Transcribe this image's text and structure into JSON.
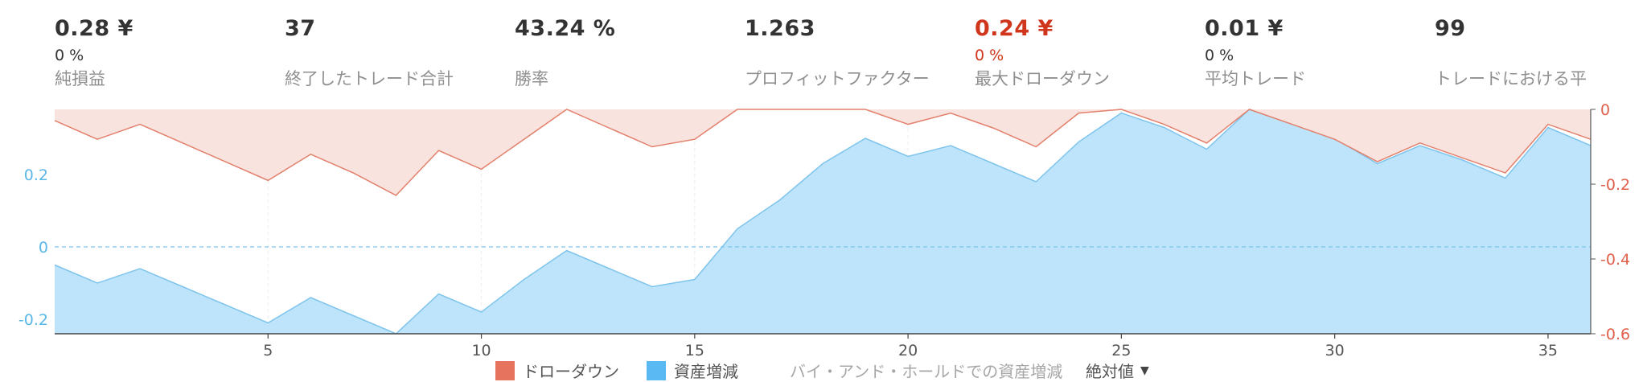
{
  "stats": [
    {
      "value": "0.28 ¥",
      "pct": "0 %",
      "label": "純損益",
      "color": "#333333"
    },
    {
      "value": "37",
      "pct": "",
      "label": "終了したトレード合計",
      "color": "#333333"
    },
    {
      "value": "43.24 %",
      "pct": "",
      "label": "勝率",
      "color": "#333333"
    },
    {
      "value": "1.263",
      "pct": "",
      "label": "プロフィットファクター",
      "color": "#333333"
    },
    {
      "value": "0.24 ¥",
      "pct": "0 %",
      "label": "最大ドローダウン",
      "color": "#d0361c"
    },
    {
      "value": "0.01 ¥",
      "pct": "0 %",
      "label": "平均トレード",
      "color": "#333333"
    },
    {
      "value": "99",
      "pct": "",
      "label": "トレードにおける平",
      "color": "#333333"
    }
  ],
  "legend": {
    "drawdown": "ドローダウン",
    "equity": "資産増減",
    "buy_hold": "バイ・アンド・ホールドでの資産増減",
    "mode": "絶対値"
  },
  "colors": {
    "drawdown_fill": "#f9e1dc",
    "drawdown_line": "#e2806c",
    "drawdown_swatch": "#e5735e",
    "equity_fill": "#bde4fa",
    "equity_line": "#7fc4ec",
    "equity_swatch": "#5ab8f2",
    "left_axis": "#5ab8e8",
    "right_axis": "#e0604a"
  },
  "chart_data": {
    "type": "area",
    "xticks": [
      5,
      10,
      15,
      20,
      25,
      30,
      35
    ],
    "xlim": [
      0,
      36
    ],
    "left_axis": {
      "ticks": [
        0.2,
        0,
        -0.2
      ],
      "ylim": [
        -0.24,
        0.38
      ]
    },
    "right_axis": {
      "ticks": [
        0,
        -0.2,
        -0.4,
        -0.6
      ],
      "ylim": [
        -0.6,
        0.0
      ]
    },
    "series": [
      {
        "name": "資産増減",
        "axis": "left",
        "x": [
          0,
          1,
          2,
          3,
          4,
          5,
          6,
          7,
          8,
          9,
          10,
          11,
          12,
          13,
          14,
          15,
          16,
          17,
          18,
          19,
          20,
          21,
          22,
          23,
          24,
          25,
          26,
          27,
          28,
          29,
          30,
          31,
          32,
          33,
          34,
          35,
          36
        ],
        "values": [
          -0.05,
          -0.1,
          -0.06,
          -0.11,
          -0.16,
          -0.21,
          -0.14,
          -0.19,
          -0.24,
          -0.13,
          -0.18,
          -0.09,
          -0.01,
          -0.06,
          -0.11,
          -0.09,
          0.05,
          0.13,
          0.23,
          0.3,
          0.25,
          0.28,
          0.23,
          0.18,
          0.29,
          0.37,
          0.33,
          0.27,
          0.38,
          0.34,
          0.3,
          0.23,
          0.28,
          0.24,
          0.19,
          0.33,
          0.28
        ]
      },
      {
        "name": "ドローダウン",
        "axis": "right",
        "x": [
          0,
          1,
          2,
          3,
          4,
          5,
          6,
          7,
          8,
          9,
          10,
          11,
          12,
          13,
          14,
          15,
          16,
          17,
          18,
          19,
          20,
          21,
          22,
          23,
          24,
          25,
          26,
          27,
          28,
          29,
          30,
          31,
          32,
          33,
          34,
          35,
          36
        ],
        "values": [
          -0.03,
          -0.08,
          -0.04,
          -0.09,
          -0.14,
          -0.19,
          -0.12,
          -0.17,
          -0.23,
          -0.11,
          -0.16,
          -0.08,
          0.0,
          -0.05,
          -0.1,
          -0.08,
          0.0,
          0.0,
          0.0,
          0.0,
          -0.04,
          -0.01,
          -0.05,
          -0.1,
          -0.01,
          0.0,
          -0.04,
          -0.09,
          0.0,
          -0.04,
          -0.08,
          -0.14,
          -0.09,
          -0.13,
          -0.17,
          -0.04,
          -0.08
        ]
      }
    ]
  }
}
